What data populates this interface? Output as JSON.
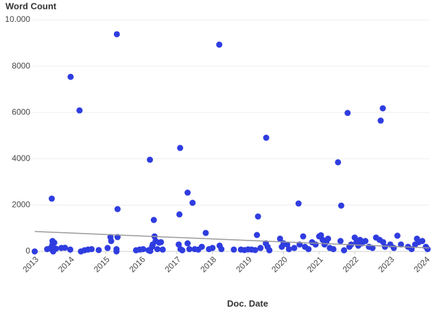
{
  "chart_data": {
    "type": "scatter",
    "ylabel": "Word Count",
    "xlabel": "Doc. Date",
    "color": "#2f3de0",
    "x": [
      2013.0,
      2013.35,
      2013.45,
      2013.48,
      2013.5,
      2013.5,
      2013.5,
      2013.5,
      2013.52,
      2013.55,
      2013.6,
      2013.75,
      2013.85,
      2014.01,
      2014.0,
      2014.26,
      2014.3,
      2014.4,
      2014.5,
      2014.6,
      2014.8,
      2015.05,
      2015.13,
      2015.15,
      2015.31,
      2015.33,
      2015.33,
      2015.3,
      2015.3,
      2015.85,
      2015.95,
      2016.05,
      2016.2,
      2016.25,
      2016.24,
      2016.3,
      2016.32,
      2016.35,
      2016.37,
      2016.4,
      2016.45,
      2016.5,
      2016.55,
      2016.6,
      2017.07,
      2017.09,
      2017.05,
      2017.1,
      2017.15,
      2017.3,
      2017.3,
      2017.35,
      2017.44,
      2017.5,
      2017.6,
      2017.7,
      2017.81,
      2017.9,
      2018.0,
      2018.19,
      2018.2,
      2018.25,
      2018.6,
      2018.8,
      2018.9,
      2019.0,
      2019.1,
      2019.2,
      2019.28,
      2019.25,
      2019.35,
      2019.51,
      2019.5,
      2019.55,
      2019.6,
      2019.9,
      2019.95,
      2020.0,
      2020.1,
      2020.15,
      2020.3,
      2020.42,
      2020.45,
      2020.55,
      2020.6,
      2020.7,
      2020.8,
      2020.9,
      2021.0,
      2021.05,
      2021.1,
      2021.15,
      2021.2,
      2021.25,
      2021.3,
      2021.4,
      2021.53,
      2021.6,
      2021.62,
      2021.7,
      2021.8,
      2021.85,
      2021.9,
      2022.0,
      2022.05,
      2022.1,
      2022.15,
      2022.2,
      2022.3,
      2022.4,
      2022.5,
      2022.6,
      2022.7,
      2022.73,
      2022.79,
      2022.8,
      2022.85,
      2023.0,
      2023.1,
      2023.2,
      2023.3,
      2023.5,
      2023.6,
      2023.7,
      2023.75,
      2023.8,
      2023.9,
      2024.0,
      2024.05
    ],
    "values": [
      0,
      100,
      150,
      2280,
      450,
      300,
      200,
      50,
      0,
      380,
      120,
      150,
      160,
      7540,
      80,
      6090,
      0,
      50,
      80,
      100,
      60,
      150,
      620,
      450,
      9380,
      1830,
      620,
      100,
      0,
      50,
      80,
      100,
      50,
      20,
      3960,
      200,
      300,
      1360,
      650,
      450,
      100,
      380,
      400,
      80,
      1600,
      4470,
      300,
      100,
      50,
      2540,
      350,
      100,
      2100,
      100,
      80,
      200,
      800,
      100,
      150,
      8930,
      250,
      100,
      80,
      80,
      60,
      90,
      80,
      60,
      1510,
      710,
      150,
      4910,
      350,
      200,
      50,
      550,
      200,
      350,
      300,
      100,
      150,
      2070,
      300,
      650,
      200,
      100,
      400,
      300,
      650,
      700,
      500,
      300,
      400,
      550,
      150,
      100,
      3850,
      450,
      1980,
      50,
      5980,
      200,
      300,
      600,
      400,
      250,
      500,
      350,
      450,
      200,
      150,
      600,
      500,
      5650,
      6180,
      400,
      200,
      300,
      150,
      680,
      300,
      200,
      100,
      300,
      550,
      400,
      450,
      200,
      100
    ],
    "trend": {
      "color": "#999999",
      "x": [
        2013.0,
        2024.1
      ],
      "values": [
        860,
        150
      ]
    },
    "xlim": [
      2012.95,
      2024.1
    ],
    "xticks": [
      2013,
      2014,
      2015,
      2016,
      2017,
      2018,
      2019,
      2020,
      2021,
      2022,
      2023,
      2024
    ],
    "ylim": [
      0,
      10000
    ],
    "yticks": [
      0,
      2000,
      4000,
      6000,
      8000,
      {
        "value": 10000,
        "label": "10.000"
      }
    ],
    "grid": true
  }
}
